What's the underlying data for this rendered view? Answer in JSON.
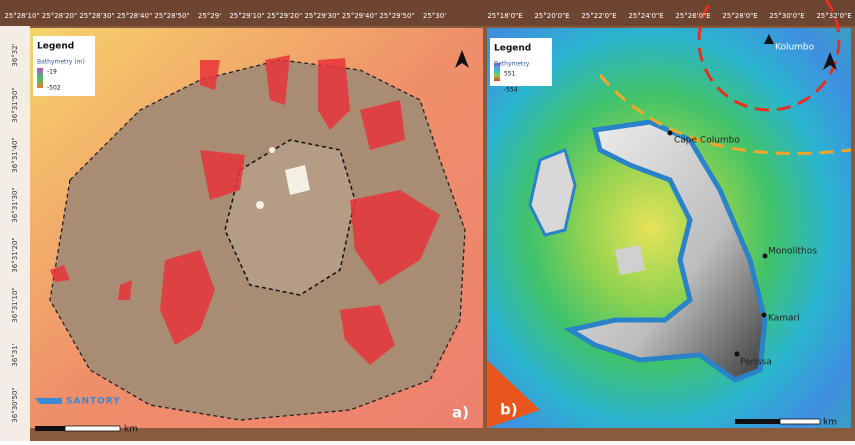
{
  "panels": [
    {
      "label": "a)",
      "top_ticks": [
        "25°28'10\"",
        "25°28'20\"",
        "25°28'30\"",
        "25°28'40\"",
        "25°28'50\"",
        "25°29'",
        "25°29'10\"",
        "25°29'20\"",
        "25°29'30\"",
        "25°29'40\"",
        "25°29'50\"",
        "25°30'"
      ],
      "left_ticks": [
        "36°32'",
        "36°31'50\"",
        "36°31'40\"",
        "36°31'30\"",
        "36°31'20\"",
        "36°31'10\"",
        "36°31'",
        "36°30'50\""
      ],
      "legend": {
        "title": "Legend",
        "subtitle": "Bathymetry (m)",
        "max": "-19",
        "min": "-502"
      },
      "scale_unit": "km",
      "logo": "SANTORY"
    },
    {
      "label": "b)",
      "top_ticks": [
        "25°18'0\"E",
        "25°20'0\"E",
        "25°22'0\"E",
        "25°24'0\"E",
        "25°26'0\"E",
        "25°28'0\"E",
        "25°30'0\"E",
        "25°32'0\"E"
      ],
      "legend": {
        "title": "Legend",
        "subtitle": "Bathymetry",
        "max": "551",
        "min": "-554"
      },
      "scale_unit": "km",
      "places": [
        "Kolumbo",
        "Cape Columbo",
        "Monolithos",
        "Kamari",
        "Perissa"
      ]
    }
  ]
}
